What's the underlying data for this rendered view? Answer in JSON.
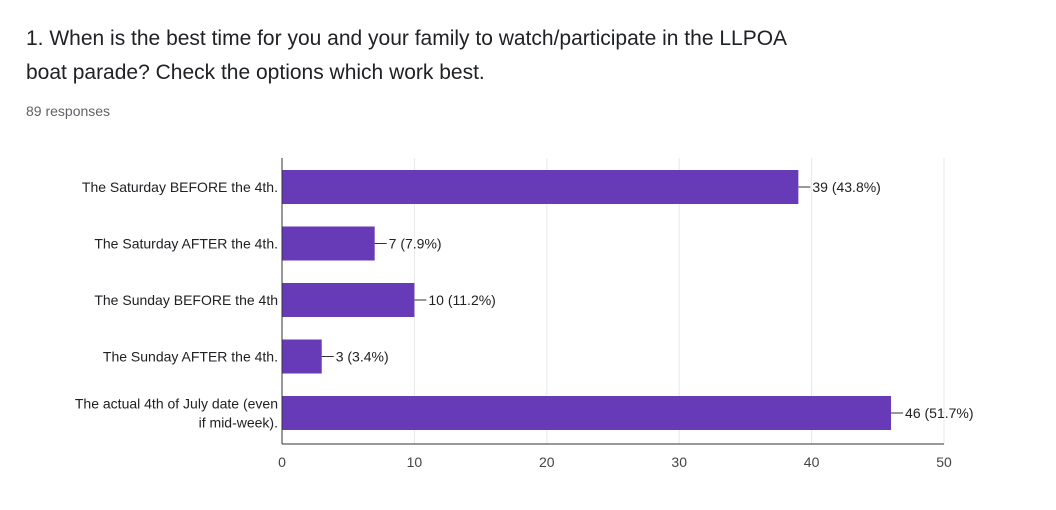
{
  "question": {
    "title_line1": "1. When is the best time for you and your family to watch/participate in the LLPOA",
    "title_line2": "boat parade?  Check the options which work best.",
    "responses": "89 responses"
  },
  "colors": {
    "bar": "#673ab7",
    "grid": "#e8e8e8",
    "axis": "#333333"
  },
  "chart_data": {
    "type": "bar",
    "orientation": "horizontal",
    "categories": [
      [
        "The Saturday BEFORE the 4th."
      ],
      [
        "The Saturday AFTER the 4th."
      ],
      [
        "The Sunday BEFORE the 4th"
      ],
      [
        "The Sunday AFTER the 4th."
      ],
      [
        "The actual 4th of July date (even",
        "if mid-week)."
      ]
    ],
    "values": [
      39,
      7,
      10,
      3,
      46
    ],
    "data_labels": [
      "39 (43.8%)",
      "7 (7.9%)",
      "10 (11.2%)",
      "3 (3.4%)",
      "46 (51.7%)"
    ],
    "xlim": [
      0,
      50
    ],
    "xticks": [
      0,
      10,
      20,
      30,
      40,
      50
    ],
    "grid": true
  }
}
